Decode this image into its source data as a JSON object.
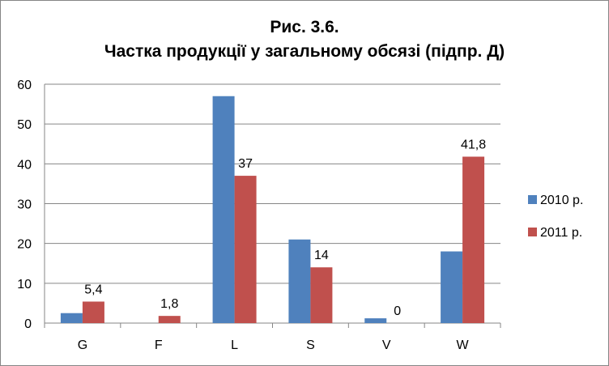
{
  "chart_data": {
    "type": "bar",
    "title": "Рис. 3.6.",
    "subtitle": "Частка продукції у загальному обсязі (підпр. Д)",
    "xlabel": "",
    "ylabel": "",
    "categories": [
      "G",
      "F",
      "L",
      "S",
      "V",
      "W"
    ],
    "ylim": [
      0,
      60
    ],
    "yticks": [
      "0",
      "10",
      "20",
      "30",
      "40",
      "50",
      "60"
    ],
    "ytick_values": [
      0,
      10,
      20,
      30,
      40,
      50,
      60
    ],
    "grid": true,
    "legend_position": "right",
    "series": [
      {
        "name": "2010 р.",
        "color": "#4F81BD",
        "values": [
          2.5,
          0,
          57,
          21,
          1.2,
          18
        ],
        "labels": [
          "",
          "",
          "",
          "",
          "",
          ""
        ]
      },
      {
        "name": "2011 р.",
        "color": "#C0504D",
        "values": [
          5.4,
          1.8,
          37,
          14,
          0,
          41.8
        ],
        "labels": [
          "5,4",
          "1,8",
          "37",
          "14",
          "0",
          "41,8"
        ]
      }
    ]
  }
}
